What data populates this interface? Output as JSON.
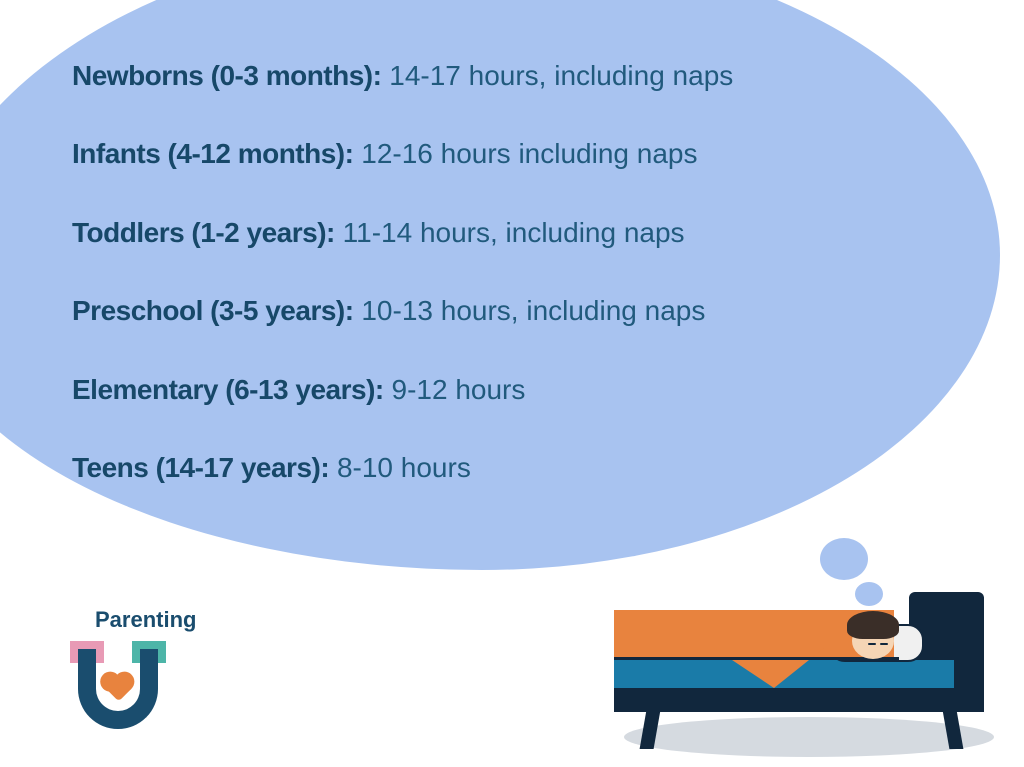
{
  "colors": {
    "bubble_bg": "#a8c3f0",
    "text_dark": "#174869",
    "text_value": "#215a7d",
    "bed_frame": "#11273d",
    "mattress": "#1a7ba8",
    "blanket": "#e8833e",
    "pillow": "#f0f0f0",
    "skin": "#f5d5b5",
    "hair": "#3a2e28",
    "shadow": "#d5dae0",
    "logo_pink": "#e89ab5",
    "logo_teal": "#4db5a8",
    "logo_heart": "#e8833e",
    "background": "#ffffff"
  },
  "typography": {
    "list_fontsize": 28,
    "label_weight": 800,
    "value_weight": 400,
    "logo_fontsize": 22
  },
  "sleep_guidelines": [
    {
      "label": "Newborns (0-3 months):",
      "value": " 14-17 hours, including naps"
    },
    {
      "label": "Infants (4-12 months):",
      "value": " 12-16 hours including naps"
    },
    {
      "label": "Toddlers (1-2 years):",
      "value": " 11-14 hours, including naps"
    },
    {
      "label": "Preschool (3-5 years):",
      "value": " 10-13 hours, including naps"
    },
    {
      "label": "Elementary (6-13 years):",
      "value": " 9-12 hours"
    },
    {
      "label": "Teens (14-17 years):",
      "value": " 8-10 hours"
    }
  ],
  "logo": {
    "text": "Parenting"
  }
}
